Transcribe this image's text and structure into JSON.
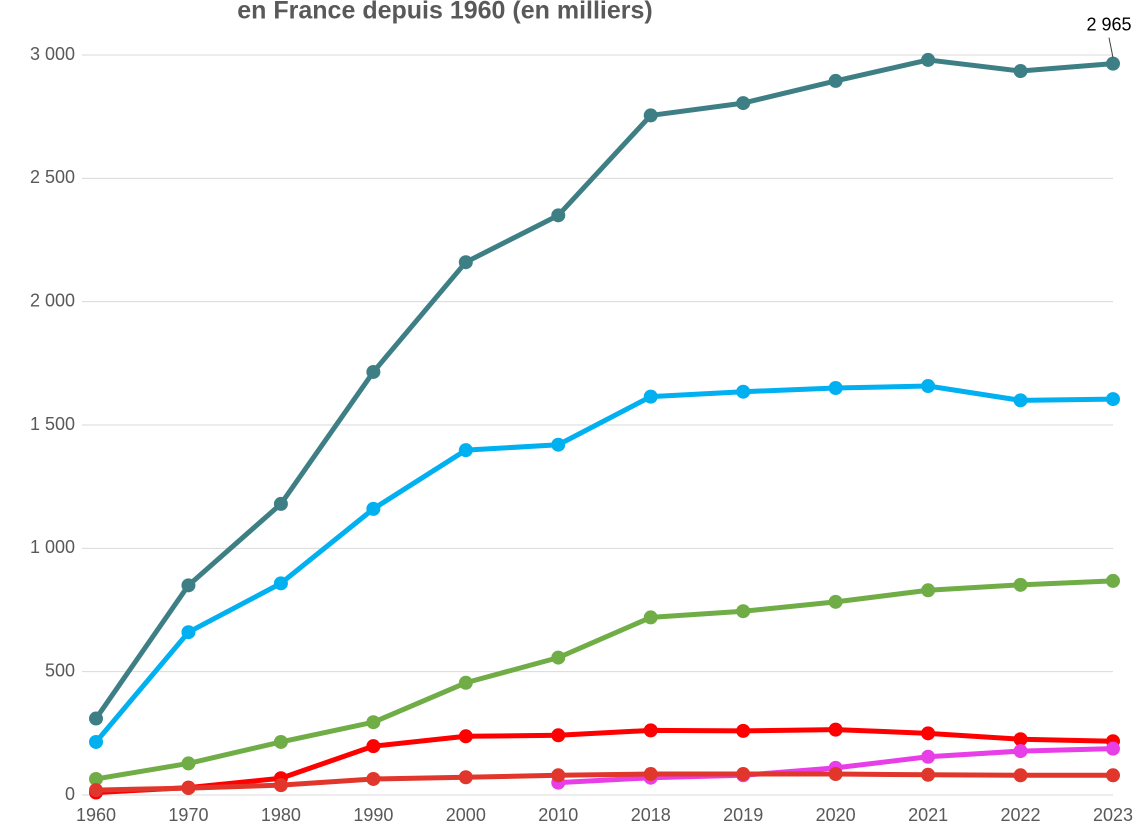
{
  "chart_data": {
    "type": "line",
    "title": "en France depuis 1960 (en milliers)",
    "categories": [
      "1960",
      "1970",
      "1980",
      "1990",
      "2000",
      "2010",
      "2018",
      "2019",
      "2020",
      "2021",
      "2022",
      "2023"
    ],
    "series": [
      {
        "color": "#3e7f86",
        "values": [
          310,
          850,
          1180,
          1715,
          2160,
          2350,
          2755,
          2805,
          2895,
          2980,
          2935,
          2965
        ],
        "value_labels": [
          null,
          null,
          null,
          null,
          null,
          null,
          null,
          null,
          null,
          null,
          null,
          "2 965"
        ]
      },
      {
        "color": "#00b0f0",
        "values": [
          215,
          660,
          858,
          1160,
          1398,
          1420,
          1615,
          1635,
          1650,
          1658,
          1600,
          1605
        ]
      },
      {
        "color": "#70ad47",
        "values": [
          65,
          128,
          215,
          295,
          455,
          557,
          720,
          745,
          783,
          830,
          852,
          868
        ]
      },
      {
        "color": "#ff0000",
        "values": [
          10,
          30,
          68,
          198,
          238,
          242,
          262,
          260,
          265,
          250,
          226,
          218
        ]
      },
      {
        "color": "#e83ee8",
        "values": [
          null,
          null,
          null,
          null,
          null,
          50,
          70,
          80,
          110,
          155,
          178,
          188
        ]
      },
      {
        "color": "#e0362c",
        "values": [
          20,
          28,
          40,
          65,
          72,
          80,
          85,
          85,
          85,
          82,
          80,
          80
        ]
      }
    ],
    "ylim": [
      0,
      3000
    ],
    "yticks": [
      0,
      500,
      {
        "value": 1000,
        "label": "1 000"
      },
      {
        "value": 1500,
        "label": "1 500"
      },
      {
        "value": 2000,
        "label": "2 000"
      },
      {
        "value": 2500,
        "label": "2 500"
      },
      {
        "value": 3000,
        "label": "3 000"
      }
    ],
    "grid": true
  }
}
